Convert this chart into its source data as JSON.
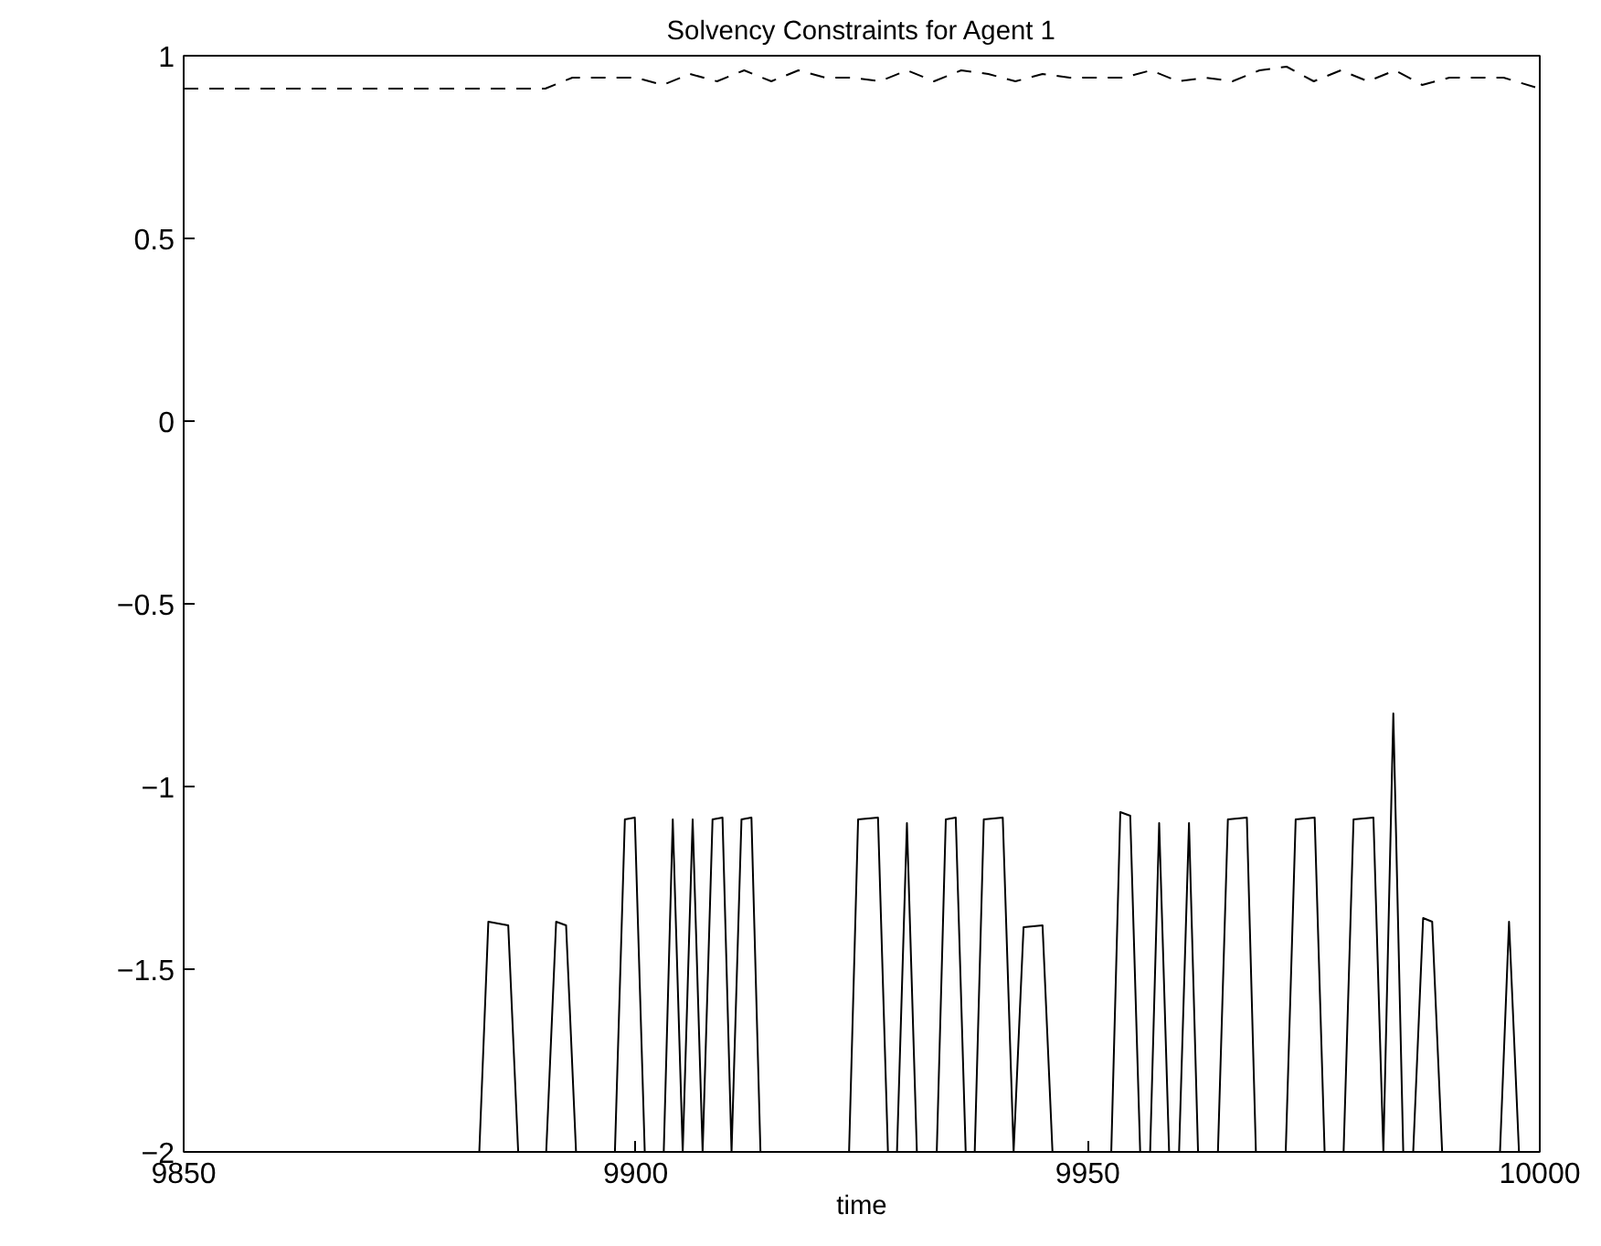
{
  "chart_data": {
    "type": "line",
    "title": "Solvency Constraints for Agent 1",
    "xlabel": "time",
    "xlim": [
      9850,
      10000
    ],
    "ylim": [
      -2,
      1
    ],
    "xticks": [
      9850,
      9900,
      9950,
      10000
    ],
    "yticks": [
      {
        "value": -2,
        "label": "−2"
      },
      {
        "value": -1.5,
        "label": "−1.5"
      },
      {
        "value": -1,
        "label": "−1"
      },
      {
        "value": -0.5,
        "label": "−0.5"
      },
      0,
      0.5,
      1
    ],
    "grid": false,
    "marker": "none",
    "series": [
      {
        "color": "#000000",
        "line_style": "solid",
        "x": [
          9850,
          9882.7,
          9883.7,
          9885.9,
          9887.0,
          9890.1,
          9891.2,
          9892.3,
          9893.4,
          9897.7,
          9898.8,
          9899.9,
          9901.0,
          9903.1,
          9904.1,
          9905.2,
          9906.3,
          9907.4,
          9908.5,
          9909.6,
          9910.6,
          9911.7,
          9912.8,
          9913.8,
          9923.6,
          9924.6,
          9926.8,
          9927.9,
          9928.9,
          9930.0,
          9931.1,
          9933.3,
          9934.3,
          9935.4,
          9936.5,
          9937.5,
          9938.5,
          9940.6,
          9941.8,
          9942.9,
          9945.0,
          9946.1,
          9952.6,
          9953.6,
          9954.7,
          9955.8,
          9956.9,
          9957.9,
          9959.0,
          9960.1,
          9961.2,
          9962.2,
          9964.4,
          9965.5,
          9967.6,
          9968.6,
          9971.9,
          9973.0,
          9975.1,
          9976.2,
          9978.3,
          9979.4,
          9981.6,
          9982.7,
          9983.8,
          9984.9,
          9986.0,
          9987.1,
          9988.1,
          9989.2,
          9995.6,
          9996.6,
          9997.7,
          10000
        ],
        "values": [
          -2,
          -2,
          -1.37,
          -1.38,
          -2,
          -2,
          -1.37,
          -1.38,
          -2,
          -2,
          -1.09,
          -1.085,
          -2,
          -2,
          -1.09,
          -2,
          -1.09,
          -2,
          -1.09,
          -1.085,
          -2,
          -1.09,
          -1.085,
          -2,
          -2,
          -1.09,
          -1.085,
          -2,
          -2,
          -1.1,
          -2,
          -2,
          -1.09,
          -1.085,
          -2,
          -2,
          -1.09,
          -1.085,
          -2,
          -1.385,
          -1.38,
          -2,
          -2,
          -1.07,
          -1.08,
          -2,
          -2,
          -1.1,
          -2,
          -2,
          -1.1,
          -2,
          -2,
          -1.09,
          -1.085,
          -2,
          -2,
          -1.09,
          -1.085,
          -2,
          -2,
          -1.09,
          -1.085,
          -2,
          -0.8,
          -2,
          -2,
          -1.36,
          -1.37,
          -2,
          -2,
          -1.37,
          -2,
          -2
        ]
      },
      {
        "color": "#000000",
        "line_style": "dashed",
        "x": [
          9850,
          9890,
          9893,
          9900,
          9903,
          9906,
          9909,
          9912,
          9915,
          9918,
          9921,
          9924,
          9927,
          9930,
          9933,
          9936,
          9939,
          9942,
          9945,
          9948,
          9951,
          9954,
          9957,
          9960,
          9963,
          9966,
          9969,
          9972,
          9975,
          9978,
          9981,
          9984,
          9987,
          9990,
          9993,
          9996,
          10000
        ],
        "values": [
          0.91,
          0.91,
          0.94,
          0.94,
          0.92,
          0.95,
          0.93,
          0.96,
          0.93,
          0.96,
          0.94,
          0.94,
          0.93,
          0.96,
          0.93,
          0.96,
          0.95,
          0.93,
          0.95,
          0.94,
          0.94,
          0.94,
          0.96,
          0.93,
          0.94,
          0.93,
          0.96,
          0.97,
          0.93,
          0.96,
          0.93,
          0.96,
          0.92,
          0.94,
          0.94,
          0.94,
          0.91
        ]
      }
    ]
  }
}
